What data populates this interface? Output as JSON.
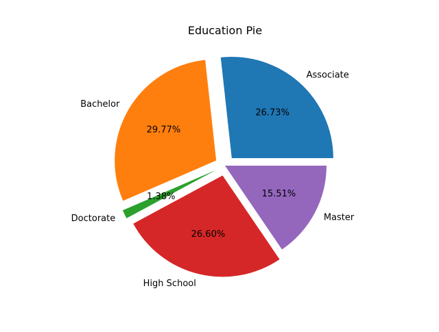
{
  "chart_data": {
    "type": "pie",
    "title": "Education Pie",
    "categories": [
      "Associate",
      "Bachelor",
      "Doctorate",
      "High School",
      "Master"
    ],
    "values": [
      26.73,
      29.77,
      1.38,
      26.6,
      15.51
    ],
    "value_labels": [
      "26.73%",
      "29.77%",
      "1.38%",
      "26.60%",
      "15.51%"
    ],
    "exploded": [
      true,
      true,
      true,
      true,
      false
    ],
    "colors": [
      "#1f77b4",
      "#ff7f0e",
      "#2ca02c",
      "#d62728",
      "#9467bd"
    ]
  }
}
